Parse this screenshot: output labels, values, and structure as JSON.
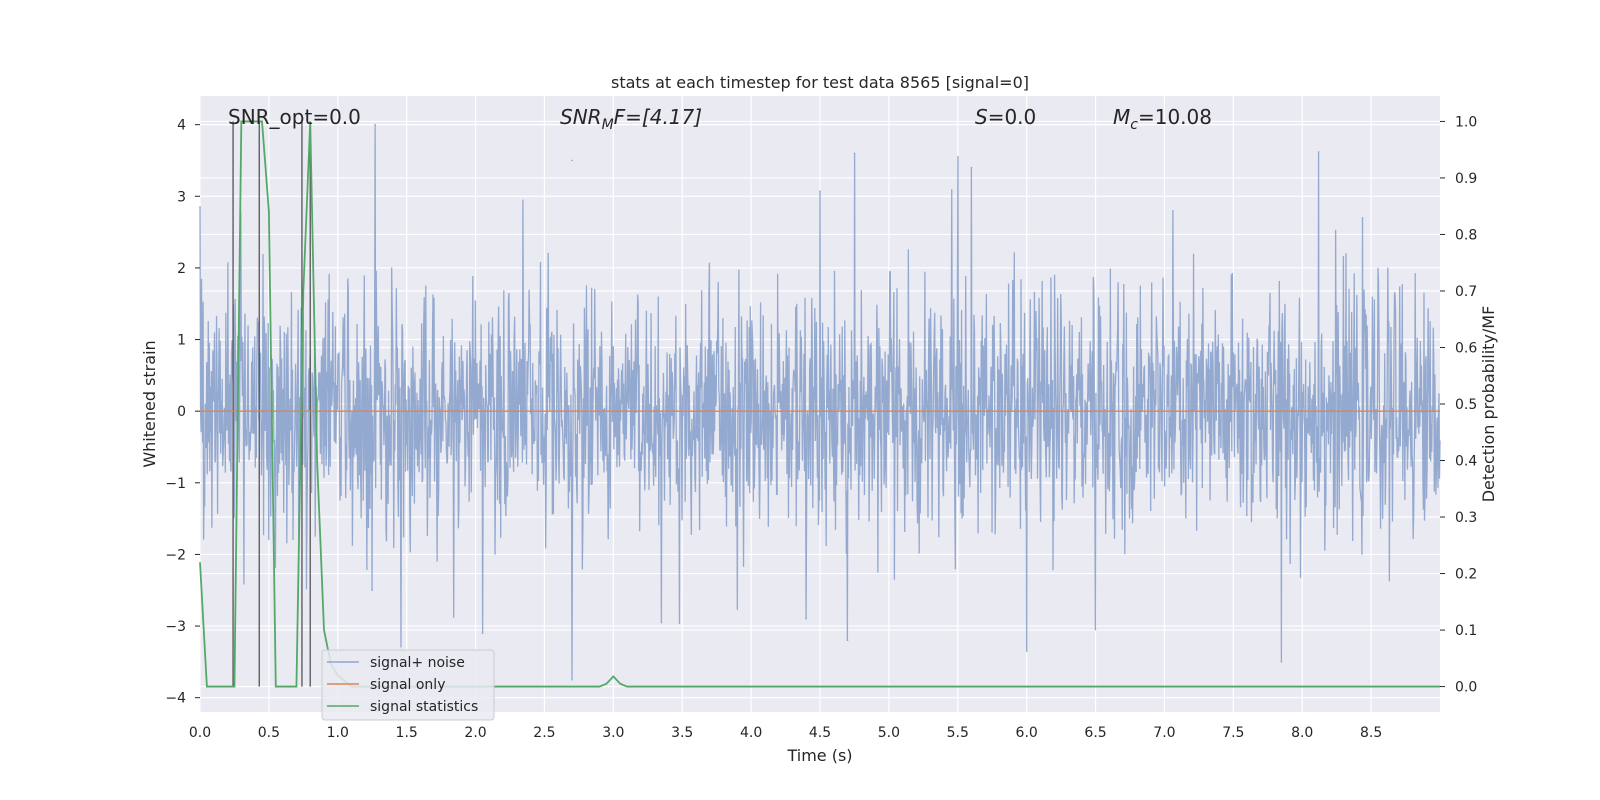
{
  "chart_data": {
    "type": "line",
    "title": "stats at each timestep for test data 8565 [signal=0]",
    "xlabel": "Time (s)",
    "ylabel": "Whitened strain",
    "y2label": "Detection probability/MF",
    "xlim": [
      0.0,
      9.0
    ],
    "ylim": [
      -4.2,
      4.4
    ],
    "y2lim": [
      -0.045,
      1.045
    ],
    "x_ticks": [
      "0.0",
      "0.5",
      "1.0",
      "1.5",
      "2.0",
      "2.5",
      "3.0",
      "3.5",
      "4.0",
      "4.5",
      "5.0",
      "5.5",
      "6.0",
      "6.5",
      "7.0",
      "7.5",
      "8.0",
      "8.5"
    ],
    "y_ticks": [
      "−4",
      "−3",
      "−2",
      "−1",
      "0",
      "1",
      "2",
      "3",
      "4"
    ],
    "y2_ticks": [
      "0.0",
      "0.1",
      "0.2",
      "0.3",
      "0.4",
      "0.5",
      "0.6",
      "0.7",
      "0.8",
      "0.9",
      "1.0"
    ],
    "grid": true,
    "legend_position": "lower-left",
    "annotations": {
      "snr_opt": "SNR_opt=0.0",
      "snr_mf_sym": "SNR",
      "snr_mf_sub": "M",
      "snr_mf_rest": "F=[4.17]",
      "s_sym": "S",
      "s_rest": "=0.0",
      "mc_sym": "M",
      "mc_sub": "c",
      "mc_rest": "=10.08"
    },
    "series": [
      {
        "name": "signal+ noise",
        "color": "#8fa5cc",
        "noise_rms": 0.85,
        "peaks": [
          {
            "x": 0.0,
            "y": 2.85
          },
          {
            "x": 1.27,
            "y": 4.0
          },
          {
            "x": 2.7,
            "y": 3.5
          },
          {
            "x": 2.7,
            "y": -3.75
          },
          {
            "x": 4.5,
            "y": 3.07
          },
          {
            "x": 4.75,
            "y": 3.6
          },
          {
            "x": 5.5,
            "y": 3.55
          },
          {
            "x": 5.6,
            "y": 3.4
          },
          {
            "x": 6.0,
            "y": -3.35
          },
          {
            "x": 4.7,
            "y": -3.2
          },
          {
            "x": 6.5,
            "y": -3.05
          },
          {
            "x": 7.85,
            "y": -3.5
          },
          {
            "x": 8.12,
            "y": 3.62
          },
          {
            "x": 1.25,
            "y": -2.5
          },
          {
            "x": 2.05,
            "y": -3.1
          },
          {
            "x": 3.35,
            "y": -2.95
          },
          {
            "x": 4.4,
            "y": -2.9
          }
        ]
      },
      {
        "name": "signal only",
        "color": "#dd8452",
        "value": 0.0
      },
      {
        "name": "signal statistics",
        "color": "#55a868",
        "axis": "right",
        "x": [
          0.0,
          0.05,
          0.1,
          0.15,
          0.2,
          0.25,
          0.3,
          0.35,
          0.4,
          0.45,
          0.5,
          0.55,
          0.6,
          0.65,
          0.7,
          0.75,
          0.8,
          0.85,
          0.9,
          0.95,
          1.0,
          1.1,
          1.5,
          2.0,
          2.5,
          2.9,
          2.95,
          3.0,
          3.05,
          3.1,
          3.5,
          4.0,
          5.0,
          6.0,
          7.0,
          8.0,
          9.0
        ],
        "y": [
          0.22,
          0.0,
          0.0,
          0.0,
          0.0,
          0.0,
          1.0,
          1.0,
          1.0,
          1.0,
          0.84,
          0.0,
          0.0,
          0.0,
          0.0,
          0.7,
          1.0,
          0.4,
          0.1,
          0.04,
          0.02,
          0.0,
          0.0,
          0.0,
          0.0,
          0.0,
          0.005,
          0.018,
          0.005,
          0.0,
          0.0,
          0.0,
          0.0,
          0.0,
          0.0,
          0.0,
          0.0
        ]
      }
    ],
    "vertical_markers": [
      0.24,
      0.43,
      0.74,
      0.8
    ]
  }
}
